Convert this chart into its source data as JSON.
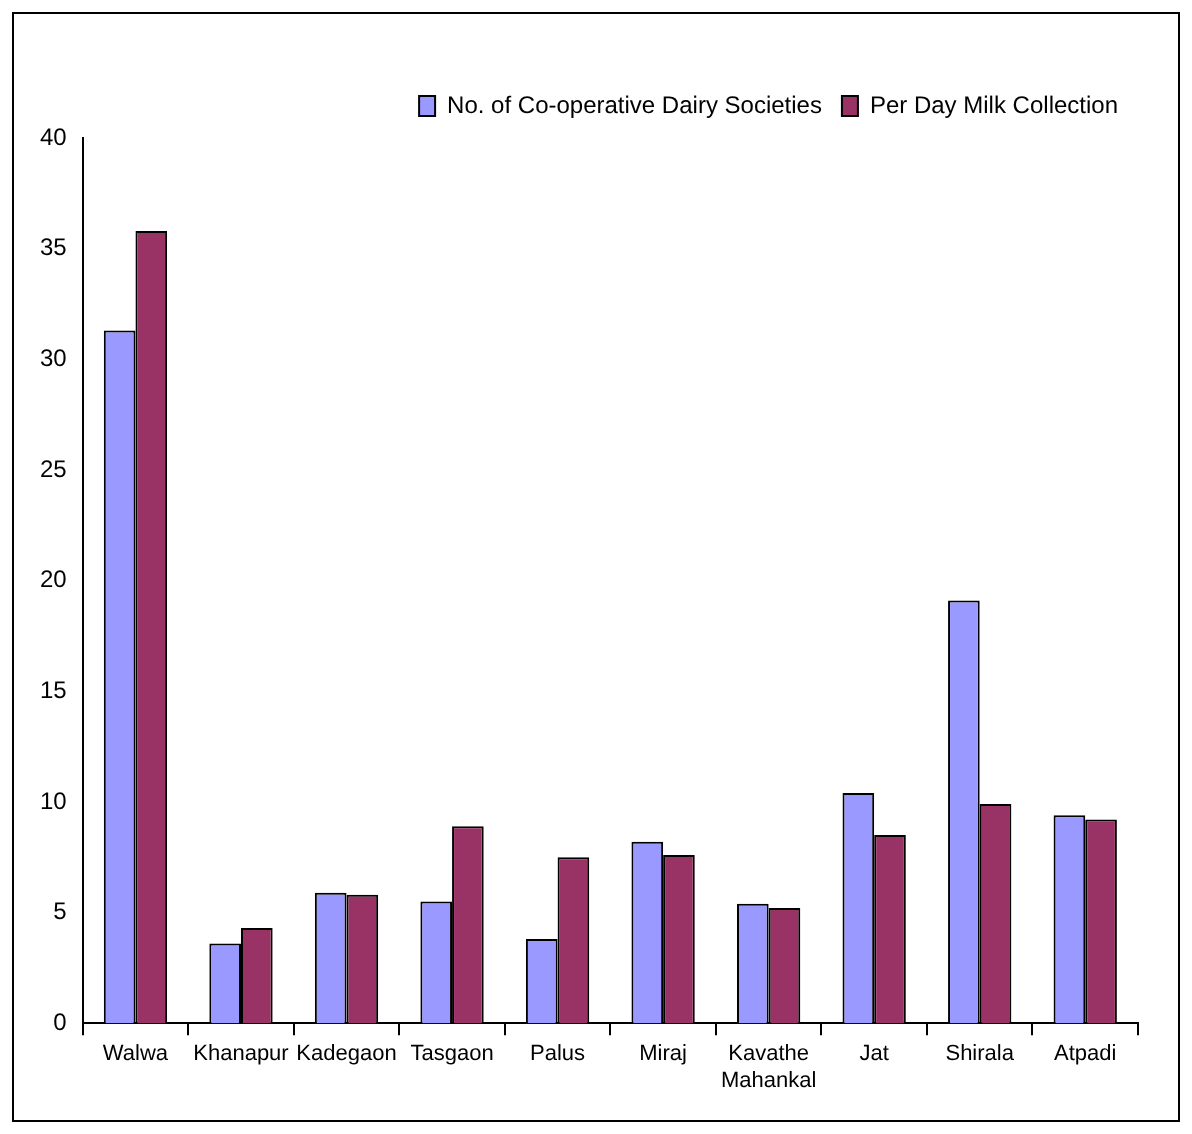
{
  "chart_data": {
    "type": "bar",
    "categories": [
      "Walwa",
      "Khanapur",
      "Kadegaon",
      "Tasgaon",
      "Palus",
      "Miraj",
      "Kavathe Mahankal",
      "Jat",
      "Shirala",
      "Atpadi"
    ],
    "series": [
      {
        "name": "No. of Co-operative Dairy Societies",
        "color": "#9999ff",
        "values": [
          31.3,
          3.6,
          5.9,
          5.5,
          3.8,
          8.2,
          5.4,
          10.4,
          19.1,
          9.4
        ]
      },
      {
        "name": "Per Day Milk Collection",
        "color": "#993366",
        "values": [
          35.8,
          4.3,
          5.8,
          8.9,
          7.5,
          7.6,
          5.2,
          8.5,
          9.9,
          9.2
        ]
      }
    ],
    "ylim": [
      0,
      40
    ],
    "yticks": [
      0,
      5,
      10,
      15,
      20,
      25,
      30,
      35,
      40
    ],
    "grid": false,
    "legend": "top right"
  }
}
